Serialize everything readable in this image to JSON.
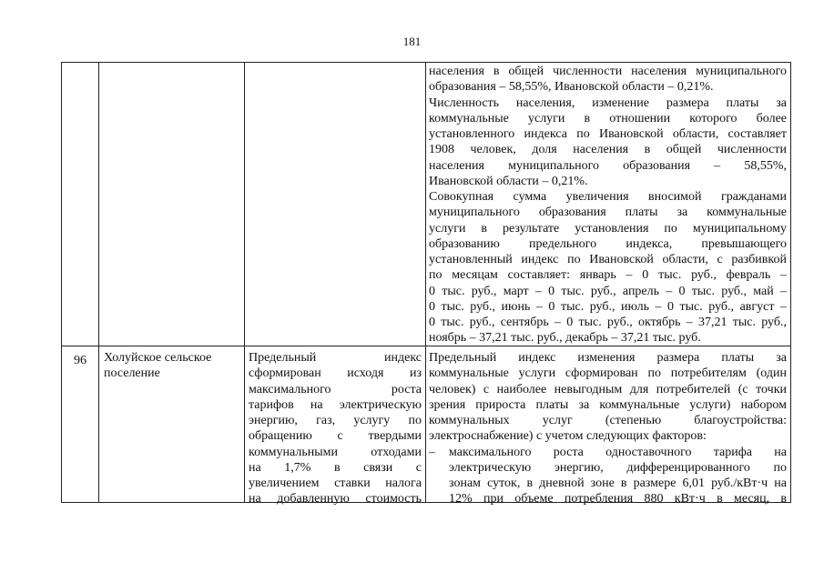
{
  "page_number": "181",
  "rows": [
    {
      "num": "",
      "name": [],
      "rationale": [],
      "details": [
        {
          "t": "населения в общей численности населения муниципального",
          "j": true
        },
        {
          "t": "образования – 58,55%, Ивановской области – 0,21%.",
          "j": false
        },
        {
          "t": "Численность населения, изменение размера платы за",
          "j": true
        },
        {
          "t": "коммунальные услуги в отношении которого более",
          "j": true
        },
        {
          "t": "установленного индекса по Ивановской области, составляет",
          "j": true
        },
        {
          "t": "1908 человек, доля населения в общей численности",
          "j": true
        },
        {
          "t": "населения муниципального образования – 58,55%,",
          "j": true
        },
        {
          "t": "Ивановской области – 0,21%.",
          "j": false
        },
        {
          "t": "Совокупная сумма увеличения вносимой гражданами",
          "j": true
        },
        {
          "t": "муниципального образования платы за коммунальные",
          "j": true
        },
        {
          "t": "услуги в результате установления по муниципальному",
          "j": true
        },
        {
          "t": "образованию предельного индекса, превышающего",
          "j": true
        },
        {
          "t": "установленный индекс по Ивановской области, с разбивкой",
          "j": true
        },
        {
          "t": "по месяцам составляет: январь – 0 тыс. руб., февраль –",
          "j": true
        },
        {
          "t": "0 тыс. руб., март – 0 тыс. руб., апрель – 0 тыс. руб., май –",
          "j": true
        },
        {
          "t": "0 тыс. руб., июнь – 0 тыс. руб., июль – 0 тыс. руб., август –",
          "j": true
        },
        {
          "t": "0 тыс. руб., сентябрь – 0 тыс. руб., октябрь – 37,21 тыс. руб.,",
          "j": true
        },
        {
          "t": "ноябрь – 37,21 тыс. руб., декабрь – 37,21 тыс. руб.",
          "j": false
        }
      ]
    },
    {
      "num": "96",
      "name": [
        "Холуйское сельское",
        "поселение"
      ],
      "rationale": [
        {
          "t": "Предельный индекс",
          "j": true
        },
        {
          "t": "сформирован исходя из",
          "j": true
        },
        {
          "t": "максимального роста",
          "j": true
        },
        {
          "t": "тарифов на электрическую",
          "j": true
        },
        {
          "t": "энергию, газ, услугу по",
          "j": true
        },
        {
          "t": "обращению с твердыми",
          "j": true
        },
        {
          "t": "коммунальными отходами",
          "j": true
        },
        {
          "t": "на 1,7% в связи с",
          "j": true
        },
        {
          "t": "увеличением ставки налога",
          "j": true
        },
        {
          "t": "на добавленную стоимость",
          "j": true
        }
      ],
      "details": [
        {
          "t": "Предельный индекс изменения размера платы за",
          "j": true
        },
        {
          "t": "коммунальные услуги сформирован по потребителям (один",
          "j": true
        },
        {
          "t": "человек) с наиболее невыгодным для потребителей (с точки",
          "j": true
        },
        {
          "t": "зрения прироста платы за коммунальные услуги) набором",
          "j": true
        },
        {
          "t": "коммунальных услуг (степенью благоустройства:",
          "j": true
        },
        {
          "t": "электроснабжение) с учетом следующих факторов:",
          "j": false
        },
        {
          "t": "максимального роста одноставочного тарифа на",
          "j": true,
          "bullet": "–"
        },
        {
          "t": "электрическую энергию, дифференцированного по",
          "j": true,
          "indent": true
        },
        {
          "t": "зонам суток, в дневной зоне в размере 6,01 руб./кВт·ч на",
          "j": true,
          "indent": true
        },
        {
          "t": "12% при объеме потребления 880 кВт·ч в месяц, в",
          "j": true,
          "indent": true
        }
      ]
    }
  ]
}
